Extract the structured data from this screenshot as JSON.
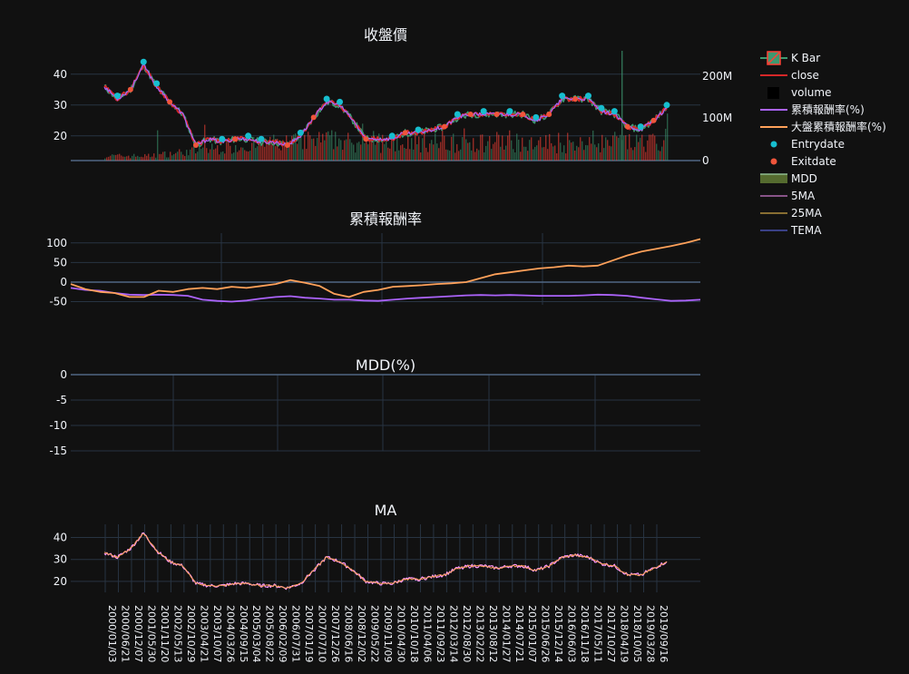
{
  "colors": {
    "background": "#111111",
    "grid": "#283442",
    "zeroline": "#506784",
    "text": "#f2f5fa",
    "k_bar_up": "#3d9970",
    "k_bar_down": "#ff4136",
    "close": "#d62728",
    "entry": "#17becf",
    "exit": "#ef553b",
    "strategy_return": "#ab63fa",
    "benchmark_return": "#ffa15a",
    "ma5": "#ff97ff",
    "ma25": "#fecb52",
    "tema": "#636efa",
    "mdd": "#556b2f"
  },
  "legend": [
    {
      "key": "kbar",
      "label": "K Bar",
      "icon": "candlestick-icon"
    },
    {
      "key": "close",
      "label": "close",
      "icon": "line-icon"
    },
    {
      "key": "volume",
      "label": "volume",
      "icon": "bar-icon"
    },
    {
      "key": "strategy",
      "label": "累積報酬率(%)",
      "icon": "line-icon"
    },
    {
      "key": "benchmark",
      "label": "大盤累積報酬率(%)",
      "icon": "line-icon"
    },
    {
      "key": "entry",
      "label": "Entrydate",
      "icon": "dot-icon"
    },
    {
      "key": "exit",
      "label": "Exitdate",
      "icon": "dot-icon"
    },
    {
      "key": "mdd",
      "label": "MDD",
      "icon": "area-icon"
    },
    {
      "key": "ma5",
      "label": "5MA",
      "icon": "line-icon"
    },
    {
      "key": "ma25",
      "label": "25MA",
      "icon": "line-icon"
    },
    {
      "key": "tema",
      "label": "TEMA",
      "icon": "line-icon"
    }
  ],
  "chart_data": [
    {
      "type": "line",
      "title": "收盤價",
      "x": [
        "2000-01",
        "2000-06",
        "2000-12",
        "2001-05",
        "2001-11",
        "2002-05",
        "2002-10",
        "2003-04",
        "2003-10",
        "2004-03",
        "2004-09",
        "2005-03",
        "2005-08",
        "2006-02",
        "2006-07",
        "2007-01",
        "2007-07",
        "2007-12",
        "2008-06",
        "2008-12",
        "2009-05",
        "2009-11",
        "2010-04",
        "2010-10",
        "2011-04",
        "2011-09",
        "2012-03",
        "2012-08",
        "2013-02",
        "2013-08",
        "2014-01",
        "2014-07",
        "2015-01",
        "2015-06",
        "2015-12",
        "2016-06",
        "2016-11",
        "2017-05",
        "2017-10",
        "2018-04",
        "2018-10",
        "2019-03",
        "2019-09",
        "2020-01"
      ],
      "series": [
        {
          "name": "close",
          "values": [
            36,
            32,
            35,
            43,
            36,
            31,
            27,
            17,
            19,
            18,
            19,
            19,
            18,
            18,
            17,
            20,
            26,
            31,
            30,
            25,
            19,
            19,
            19,
            21,
            21,
            22,
            23,
            26,
            27,
            27,
            27,
            27,
            27,
            25,
            27,
            32,
            32,
            32,
            28,
            27,
            23,
            22,
            25,
            29
          ]
        }
      ],
      "y2_ticks": [
        "0",
        "100M",
        "200M"
      ],
      "ylim": [
        12,
        47
      ],
      "y_ticks": [
        20,
        30,
        40
      ]
    },
    {
      "type": "line",
      "title": "累積報酬率",
      "x": [
        "2000-01",
        "2000-06",
        "2000-12",
        "2001-05",
        "2001-11",
        "2002-05",
        "2002-10",
        "2003-04",
        "2003-10",
        "2004-03",
        "2004-09",
        "2005-03",
        "2005-08",
        "2006-02",
        "2006-07",
        "2007-01",
        "2007-07",
        "2007-12",
        "2008-06",
        "2008-12",
        "2009-05",
        "2009-11",
        "2010-04",
        "2010-10",
        "2011-04",
        "2011-09",
        "2012-03",
        "2012-08",
        "2013-02",
        "2013-08",
        "2014-01",
        "2014-07",
        "2015-01",
        "2015-06",
        "2015-12",
        "2016-06",
        "2016-11",
        "2017-05",
        "2017-10",
        "2018-04",
        "2018-10",
        "2019-03",
        "2019-09",
        "2020-01"
      ],
      "series": [
        {
          "name": "累積報酬率(%)",
          "values": [
            -15,
            -20,
            -22,
            -28,
            -32,
            -33,
            -32,
            -33,
            -35,
            -45,
            -48,
            -50,
            -47,
            -42,
            -38,
            -36,
            -40,
            -42,
            -45,
            -45,
            -47,
            -48,
            -45,
            -42,
            -40,
            -38,
            -36,
            -34,
            -33,
            -34,
            -33,
            -34,
            -35,
            -35,
            -35,
            -34,
            -32,
            -33,
            -35,
            -40,
            -44,
            -48,
            -47,
            -45
          ]
        },
        {
          "name": "大盤累積報酬率(%)",
          "values": [
            -5,
            -18,
            -25,
            -28,
            -38,
            -38,
            -22,
            -25,
            -18,
            -15,
            -18,
            -12,
            -15,
            -10,
            -5,
            5,
            -2,
            -10,
            -30,
            -38,
            -25,
            -20,
            -12,
            -10,
            -8,
            -5,
            -3,
            0,
            10,
            20,
            25,
            30,
            35,
            38,
            42,
            40,
            42,
            55,
            68,
            78,
            85,
            92,
            100,
            110
          ]
        }
      ],
      "ylim": [
        -58,
        125
      ],
      "y_ticks": [
        -50,
        0,
        50,
        100
      ]
    },
    {
      "type": "area",
      "title": "MDD(%)",
      "series": [
        {
          "name": "MDD",
          "values": [
            0,
            0,
            0,
            0
          ]
        }
      ],
      "ylim": [
        -15,
        0
      ],
      "y_ticks": [
        0,
        -5,
        -10,
        -15
      ]
    },
    {
      "type": "line",
      "title": "MA",
      "x": [
        "2000-01",
        "2000-06",
        "2000-12",
        "2001-05",
        "2001-11",
        "2002-05",
        "2002-10",
        "2003-04",
        "2003-10",
        "2004-03",
        "2004-09",
        "2005-03",
        "2005-08",
        "2006-02",
        "2006-07",
        "2007-01",
        "2007-07",
        "2007-12",
        "2008-06",
        "2008-12",
        "2009-05",
        "2009-11",
        "2010-04",
        "2010-10",
        "2011-04",
        "2011-09",
        "2012-03",
        "2012-08",
        "2013-02",
        "2013-08",
        "2014-01",
        "2014-07",
        "2015-01",
        "2015-06",
        "2015-12",
        "2016-06",
        "2016-11",
        "2017-05",
        "2017-10",
        "2018-04",
        "2018-10",
        "2019-03",
        "2019-09",
        "2020-01"
      ],
      "series": [
        {
          "name": "5MA",
          "values": [
            33,
            31,
            35,
            42,
            34,
            29,
            27,
            19,
            18,
            18,
            19,
            19,
            18,
            18,
            17,
            19,
            25,
            31,
            29,
            25,
            20,
            19,
            19,
            21,
            21,
            22,
            23,
            26,
            27,
            27,
            26,
            27,
            27,
            25,
            27,
            31,
            32,
            31,
            28,
            27,
            23,
            23,
            26,
            29
          ]
        }
      ],
      "ylim": [
        15,
        46
      ],
      "y_ticks": [
        20,
        30,
        40
      ],
      "x_tick_labels": [
        "2000/01/03",
        "2000/06/21",
        "2000/12/07",
        "2001/05/30",
        "2001/11/20",
        "2002/05/13",
        "2002/10/29",
        "2003/04/21",
        "2003/10/07",
        "2004/03/26",
        "2004/09/15",
        "2005/03/04",
        "2005/08/22",
        "2006/02/09",
        "2006/07/31",
        "2007/01/19",
        "2007/07/10",
        "2007/12/26",
        "2008/06/16",
        "2008/12/02",
        "2009/05/22",
        "2009/11/09",
        "2010/04/30",
        "2010/10/18",
        "2011/04/06",
        "2011/09/23",
        "2012/03/14",
        "2012/08/30",
        "2013/02/22",
        "2013/08/12",
        "2014/01/27",
        "2014/07/21",
        "2015/01/07",
        "2015/06/26",
        "2015/12/14",
        "2016/06/03",
        "2016/11/18",
        "2017/05/11",
        "2017/10/27",
        "2018/04/19",
        "2018/10/05",
        "2019/03/28",
        "2019/09/16"
      ]
    }
  ]
}
